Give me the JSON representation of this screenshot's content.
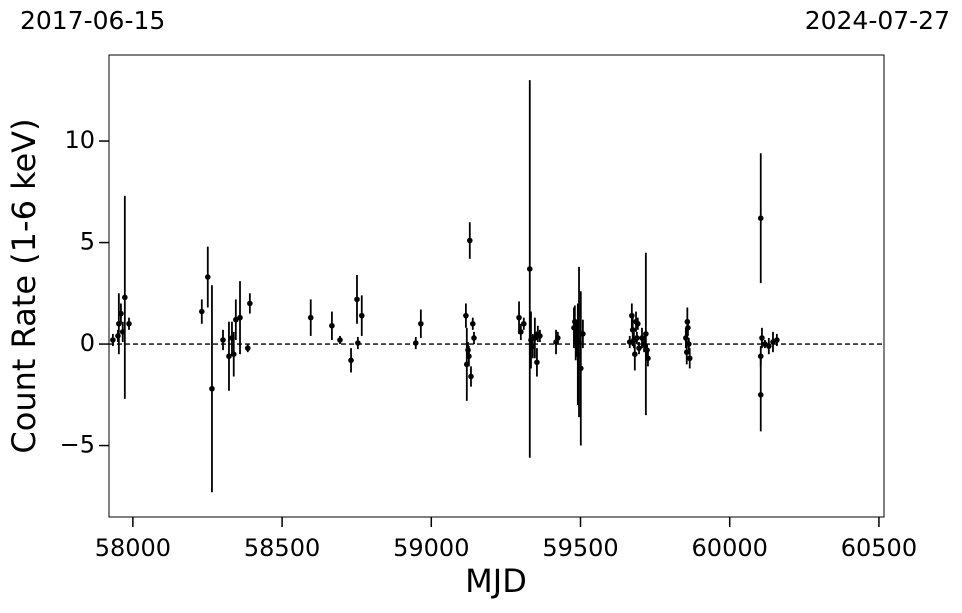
{
  "chart_data": {
    "type": "scatter",
    "left_title": "2017-06-15",
    "right_title": "2024-07-27",
    "xlabel": "MJD",
    "ylabel": "Count Rate (1-6 keV)",
    "xlim": [
      57920,
      60517
    ],
    "ylim": [
      -8.52,
      14.24
    ],
    "xticks": [
      58000,
      58500,
      59000,
      59500,
      60000,
      60500
    ],
    "yticks": [
      {
        "value": -5,
        "label": "−5"
      },
      0,
      5,
      10
    ],
    "hline": 0,
    "color": "#000000",
    "x": [
      57933,
      57950,
      57953,
      57960,
      57966,
      57973,
      57987,
      58231,
      58251,
      58265,
      58302,
      58322,
      58332,
      58338,
      58345,
      58359,
      58385,
      58392,
      58596,
      58667,
      58694,
      58731,
      58751,
      58754,
      58767,
      58948,
      58965,
      59116,
      59119,
      59123,
      59126,
      59129,
      59133,
      59139,
      59143,
      59294,
      59300,
      59310,
      59330,
      59334,
      59340,
      59347,
      59354,
      59357,
      59364,
      59418,
      59424,
      59478,
      59481,
      59484,
      59488,
      59491,
      59495,
      59501,
      59508,
      59665,
      59672,
      59675,
      59679,
      59682,
      59686,
      59689,
      59692,
      59696,
      59706,
      59713,
      59719,
      59723,
      59726,
      59853,
      59856,
      59858,
      59860,
      59863,
      59866,
      60104,
      60104,
      60104,
      60108,
      60118,
      60131,
      60145,
      60158
    ],
    "y": [
      0.2,
      0.4,
      1.0,
      1.5,
      0.6,
      2.3,
      1.0,
      1.6,
      3.3,
      -2.2,
      0.2,
      -0.6,
      0.3,
      -0.5,
      1.2,
      1.3,
      -0.2,
      2.0,
      1.3,
      0.9,
      0.2,
      -0.8,
      2.2,
      0.05,
      1.4,
      0.05,
      1.0,
      1.4,
      -1.0,
      -0.3,
      -0.6,
      5.1,
      -1.6,
      1.0,
      0.3,
      1.3,
      0.6,
      1.0,
      3.7,
      0.2,
      -0.1,
      0.3,
      -0.9,
      0.5,
      0.4,
      0.1,
      0.3,
      0.8,
      1.1,
      0.2,
      0.4,
      -0.5,
      0.1,
      -1.2,
      0.5,
      0.1,
      1.4,
      0.7,
      0.2,
      -0.5,
      1.1,
      0.3,
      1.0,
      -0.2,
      0.3,
      0.0,
      0.5,
      -0.3,
      -0.7,
      0.3,
      -0.4,
      1.1,
      0.8,
      0.0,
      -0.7,
      6.2,
      -2.5,
      -0.6,
      0.3,
      0.0,
      -0.1,
      0.1,
      0.2
    ],
    "yerr": [
      0.3,
      0.3,
      1.5,
      0.5,
      0.5,
      5.0,
      0.3,
      0.6,
      1.5,
      5.1,
      0.5,
      1.7,
      0.8,
      1.1,
      1.0,
      1.8,
      0.2,
      0.5,
      0.9,
      0.7,
      0.2,
      0.6,
      1.2,
      0.3,
      1.0,
      0.3,
      0.7,
      0.6,
      1.8,
      0.4,
      0.5,
      0.9,
      0.5,
      0.3,
      0.3,
      0.8,
      0.4,
      0.3,
      9.3,
      1.4,
      0.6,
      1.0,
      0.7,
      0.4,
      0.3,
      0.6,
      0.3,
      1.0,
      0.8,
      1.0,
      0.8,
      2.5,
      3.7,
      3.8,
      0.7,
      0.3,
      0.6,
      0.8,
      0.4,
      0.8,
      0.5,
      0.3,
      0.3,
      0.3,
      0.5,
      0.4,
      4.0,
      0.3,
      0.4,
      0.5,
      0.6,
      0.7,
      0.4,
      0.3,
      0.5,
      3.2,
      1.8,
      0.5,
      0.5,
      0.2,
      0.4,
      0.5,
      0.3
    ]
  }
}
